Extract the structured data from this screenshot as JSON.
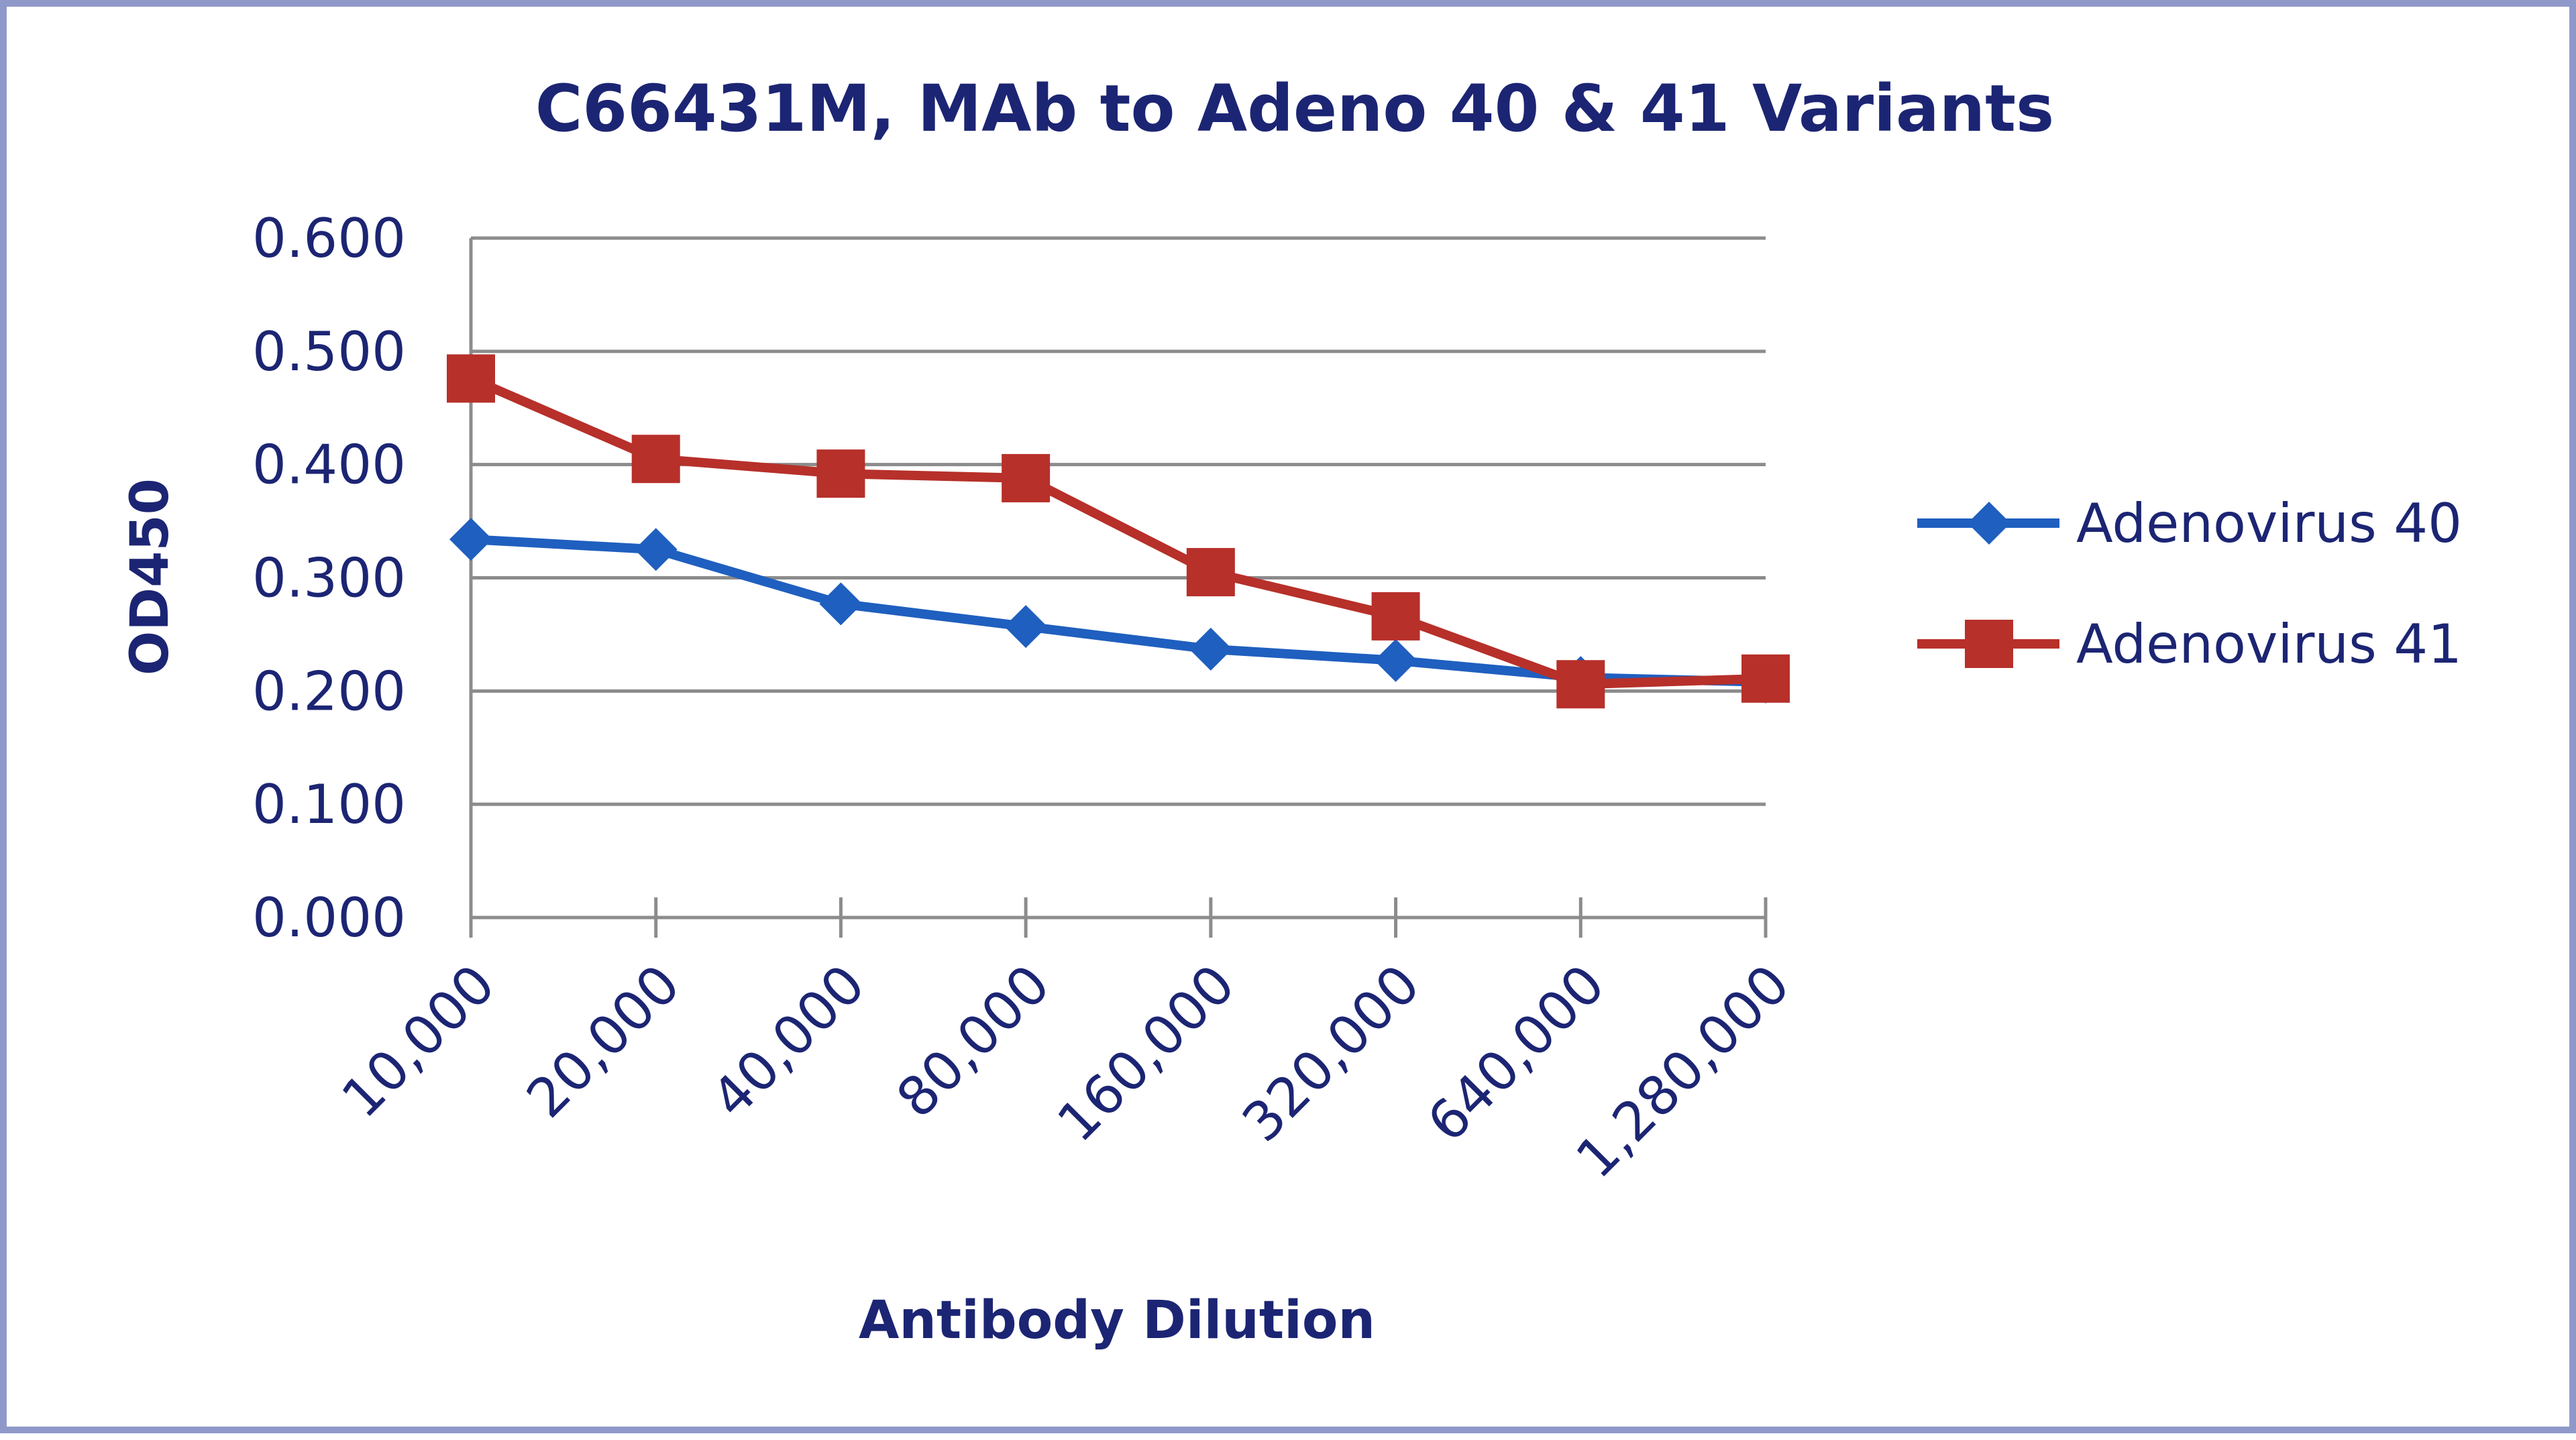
{
  "chart_data": {
    "type": "line",
    "title": "C66431M, MAb to Adeno 40 & 41 Variants",
    "xlabel": "Antibody Dilution",
    "ylabel": "OD450",
    "categories": [
      "10,000",
      "20,000",
      "40,000",
      "80,000",
      "160,000",
      "320,000",
      "640,000",
      "1,280,000"
    ],
    "y_ticks": [
      "0.000",
      "0.100",
      "0.200",
      "0.300",
      "0.400",
      "0.500",
      "0.600"
    ],
    "ylim": [
      0,
      0.6
    ],
    "grid": "horizontal",
    "legend": "right",
    "series": [
      {
        "name": "Adenovirus 40",
        "marker": "diamond",
        "color": "#1f5fbf",
        "values": [
          0.334,
          0.325,
          0.277,
          0.257,
          0.237,
          0.227,
          0.212,
          0.208
        ]
      },
      {
        "name": "Adenovirus 41",
        "marker": "square",
        "color": "#b7302a",
        "values": [
          0.476,
          0.405,
          0.392,
          0.388,
          0.305,
          0.266,
          0.206,
          0.211
        ]
      }
    ]
  },
  "colors": {
    "frame": "#8f99c9",
    "grid": "#8c8c8c",
    "text": "#1c2573"
  }
}
